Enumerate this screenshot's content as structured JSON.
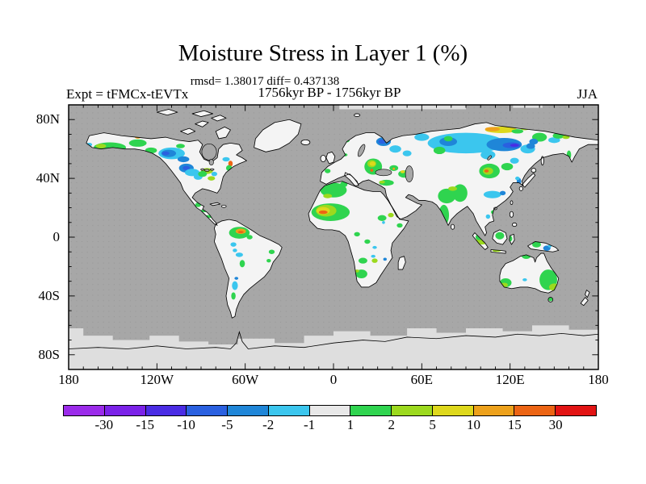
{
  "header": {
    "title": "Moisture Stress in Layer 1 (%)",
    "stats_line": "rmsd= 1.38017 diff= 0.437138",
    "period_line": "1756kyr BP - 1756kyr BP",
    "experiment_label": "Expt = tFMCx-tEVTx",
    "season_label": "JJA"
  },
  "map": {
    "x_tick_labels": [
      "180",
      "120W",
      "60W",
      "0",
      "60E",
      "120E",
      "180"
    ],
    "y_tick_labels": [
      "80N",
      "40N",
      "0",
      "40S",
      "80S"
    ],
    "ocean_color": "#A7A7A7",
    "land_color": "#F4F4F4",
    "ice_color": "#DEDEDE",
    "coastline_color": "#000000"
  },
  "colorbar": {
    "colors": [
      "#9B2BEA",
      "#7B22E8",
      "#4A2CE4",
      "#2A60E0",
      "#1F86D8",
      "#3BC6EE",
      "#E8E8E8",
      "#2FD44F",
      "#9CD91E",
      "#DED81C",
      "#EDA11B",
      "#EC6414",
      "#E21414"
    ],
    "tick_labels": [
      "-30",
      "-15",
      "-10",
      "-5",
      "-2",
      "-1",
      "1",
      "2",
      "5",
      "10",
      "15",
      "30"
    ]
  },
  "chart_data": {
    "type": "heatmap",
    "title": "Moisture Stress in Layer 1 (%)",
    "subtitle": "1756kyr BP - 1756kyr BP",
    "season": "JJA",
    "experiment": "Expt = tFMCx-tEVTx",
    "rmsd": 1.38017,
    "diff": 0.437138,
    "units": "%",
    "projection": "equirectangular",
    "lon_range": [
      -180,
      180
    ],
    "lat_range": [
      -90,
      90
    ],
    "x_ticks": [
      "180",
      "120W",
      "60W",
      "0",
      "60E",
      "120E",
      "180"
    ],
    "y_ticks": [
      "80N",
      "40N",
      "0",
      "40S",
      "80S"
    ],
    "levels": [
      -30,
      -15,
      -10,
      -5,
      -2,
      -1,
      1,
      2,
      5,
      10,
      15,
      30
    ],
    "legend_position": "bottom",
    "anomaly_regions_format": "[x = lon+180, y = 90-lat, rx, ry, palette_index]",
    "anomaly_regions": [
      [
        28,
        29,
        11,
        3.5,
        7
      ],
      [
        22,
        28,
        3.5,
        1.5,
        8
      ],
      [
        14,
        27,
        2,
        1.2,
        5
      ],
      [
        47,
        26,
        6,
        2.5,
        7
      ],
      [
        47,
        22,
        2,
        1,
        10
      ],
      [
        56,
        31,
        4,
        2,
        7
      ],
      [
        76,
        28,
        3,
        1.5,
        7
      ],
      [
        70,
        33,
        9,
        4,
        5
      ],
      [
        68,
        33,
        5,
        2.5,
        4
      ],
      [
        66,
        33,
        2.5,
        1.3,
        3
      ],
      [
        78,
        37,
        4,
        2,
        4
      ],
      [
        80,
        43,
        5,
        3,
        4
      ],
      [
        80,
        43,
        2.5,
        1.5,
        3
      ],
      [
        84,
        46,
        5,
        2.5,
        5
      ],
      [
        88,
        49,
        3,
        2,
        5
      ],
      [
        94,
        45,
        4,
        2,
        8
      ],
      [
        91,
        47,
        3,
        2,
        7
      ],
      [
        97,
        50,
        2.5,
        1.5,
        8
      ],
      [
        99,
        47,
        2,
        1.5,
        5
      ],
      [
        107,
        37,
        2.5,
        1.5,
        5
      ],
      [
        110,
        40,
        1.5,
        2,
        11
      ],
      [
        109,
        43,
        2,
        2,
        7
      ],
      [
        103,
        15,
        1.5,
        1,
        7
      ],
      [
        88,
        68,
        2,
        1.5,
        7
      ],
      [
        92,
        72,
        2,
        1,
        7
      ],
      [
        95,
        76,
        3,
        1,
        7
      ],
      [
        98,
        73,
        1,
        0.7,
        5
      ],
      [
        116,
        87,
        7,
        4,
        7
      ],
      [
        117,
        86,
        3.5,
        1.8,
        10
      ],
      [
        117,
        86.5,
        2,
        0.8,
        11
      ],
      [
        123,
        90,
        2,
        1.5,
        7
      ],
      [
        138,
        100,
        2,
        1.5,
        7
      ],
      [
        136,
        106,
        1.5,
        1.2,
        7
      ],
      [
        112,
        95,
        2,
        1.5,
        5
      ],
      [
        116,
        102,
        2.5,
        1.5,
        5
      ],
      [
        113,
        99,
        1.5,
        1.2,
        5
      ],
      [
        118,
        108,
        1.8,
        2.5,
        7
      ],
      [
        113,
        123,
        2,
        3,
        5
      ],
      [
        112,
        130,
        1.5,
        2.5,
        7
      ],
      [
        114,
        118,
        1.3,
        1,
        4
      ],
      [
        180,
        58,
        9,
        5,
        7
      ],
      [
        176,
        62,
        3,
        1.5,
        8
      ],
      [
        187,
        54,
        2.5,
        2,
        7
      ],
      [
        178,
        73,
        13,
        6,
        7
      ],
      [
        175,
        72,
        7,
        4,
        8
      ],
      [
        173,
        72,
        4.5,
        2.5,
        9
      ],
      [
        173,
        73,
        3,
        1.2,
        11
      ],
      [
        213,
        77,
        3,
        2,
        7
      ],
      [
        219,
        75,
        2,
        1.5,
        8
      ],
      [
        225,
        82,
        2,
        1.5,
        7
      ],
      [
        214,
        80,
        1,
        1,
        5
      ],
      [
        196,
        88,
        2,
        1.5,
        7
      ],
      [
        203,
        93,
        2,
        1.5,
        7
      ],
      [
        208,
        97,
        1.5,
        1,
        5
      ],
      [
        200,
        106,
        3,
        2,
        7
      ],
      [
        207,
        103,
        1.5,
        1,
        5
      ],
      [
        208,
        106,
        2,
        1.5,
        8
      ],
      [
        215,
        105,
        1.2,
        1,
        4
      ],
      [
        199,
        115,
        4,
        3,
        7
      ],
      [
        196,
        113,
        1.5,
        1,
        8
      ],
      [
        176,
        45,
        2,
        1.5,
        7
      ],
      [
        185,
        20,
        3,
        2,
        7
      ],
      [
        189,
        24,
        2,
        1.5,
        7
      ],
      [
        188,
        34,
        1.5,
        1,
        7
      ],
      [
        207,
        42,
        6,
        5.5,
        7
      ],
      [
        206,
        40,
        3,
        2.5,
        8
      ],
      [
        206.5,
        40,
        2,
        1.5,
        9
      ],
      [
        206,
        44.5,
        1,
        1,
        11
      ],
      [
        216,
        53,
        5,
        2,
        7
      ],
      [
        213,
        52.5,
        2,
        1,
        8
      ],
      [
        228,
        47,
        4,
        2.5,
        7
      ],
      [
        227,
        45.5,
        1.5,
        1,
        9
      ],
      [
        214,
        25,
        5,
        3,
        4
      ],
      [
        213,
        25,
        2.5,
        1.5,
        3
      ],
      [
        222,
        30,
        4,
        2.5,
        5
      ],
      [
        230,
        33,
        3,
        2,
        5
      ],
      [
        270,
        26,
        26,
        7,
        5
      ],
      [
        258,
        25,
        6,
        3,
        4
      ],
      [
        296,
        27,
        12,
        4.5,
        4
      ],
      [
        301,
        27.5,
        6,
        2,
        3
      ],
      [
        303,
        27.5,
        3,
        1,
        2
      ],
      [
        285,
        34,
        5,
        3,
        5
      ],
      [
        312,
        30,
        5,
        3,
        5
      ],
      [
        314,
        28,
        3,
        2,
        4
      ],
      [
        240,
        22,
        5,
        2.5,
        5
      ],
      [
        294,
        17,
        11,
        2.2,
        9
      ],
      [
        288,
        16.5,
        5,
        1.5,
        10
      ],
      [
        305,
        18,
        4,
        1.5,
        7
      ],
      [
        310,
        16,
        3,
        1.2,
        8
      ],
      [
        252,
        31,
        4,
        2.5,
        7
      ],
      [
        258,
        23,
        3,
        1.8,
        7
      ],
      [
        221,
        43,
        3,
        2,
        7
      ],
      [
        221,
        43.5,
        0.8,
        0.8,
        10
      ],
      [
        286,
        45,
        7,
        5,
        7
      ],
      [
        285,
        45,
        3.5,
        2.5,
        8
      ],
      [
        284,
        45,
        1.5,
        1,
        11
      ],
      [
        298,
        42,
        4,
        2.5,
        7
      ],
      [
        303,
        38,
        3,
        2,
        5
      ],
      [
        320,
        22,
        5,
        3,
        7
      ],
      [
        330,
        24,
        4,
        2,
        5
      ],
      [
        333,
        21,
        4,
        2,
        7
      ],
      [
        338,
        22,
        2.5,
        1.2,
        8
      ],
      [
        316,
        25,
        3,
        2,
        4
      ],
      [
        340,
        34,
        1.5,
        3,
        7
      ],
      [
        306,
        52,
        1.5,
        2.5,
        4
      ],
      [
        305,
        50,
        1.5,
        1.2,
        5
      ],
      [
        318,
        46,
        1.2,
        1.5,
        7
      ],
      [
        266,
        60,
        5,
        6,
        7
      ],
      [
        288,
        61,
        6,
        2.5,
        5
      ],
      [
        295,
        60,
        2,
        1.5,
        4
      ],
      [
        257,
        62,
        6,
        5,
        7
      ],
      [
        261,
        57,
        3,
        1.5,
        8
      ],
      [
        255,
        75,
        3.5,
        7,
        7
      ],
      [
        254,
        80,
        1.8,
        2.5,
        8
      ],
      [
        289,
        73,
        2,
        1.5,
        7
      ],
      [
        285,
        76,
        1.5,
        1.5,
        5
      ],
      [
        302,
        78,
        1,
        2,
        5
      ],
      [
        281,
        92,
        4,
        3,
        8
      ],
      [
        279,
        90,
        2.5,
        2,
        7
      ],
      [
        291,
        99,
        3,
        1,
        8
      ],
      [
        293,
        89,
        3,
        2.5,
        7
      ],
      [
        300,
        91,
        1.5,
        2,
        7
      ],
      [
        318,
        95,
        3,
        2,
        7
      ],
      [
        325,
        97.5,
        2.5,
        1.8,
        4
      ],
      [
        327,
        96,
        1.2,
        1,
        5
      ],
      [
        326,
        119,
        6,
        7,
        7
      ],
      [
        330,
        124,
        3.5,
        2.5,
        8
      ],
      [
        297,
        121,
        4,
        3,
        7
      ],
      [
        296,
        122.5,
        2.5,
        1.5,
        8
      ],
      [
        311,
        103,
        3,
        1.8,
        7
      ],
      [
        310,
        119,
        1.5,
        1,
        5
      ],
      [
        327.5,
        132,
        1.5,
        1.5,
        7
      ]
    ]
  }
}
